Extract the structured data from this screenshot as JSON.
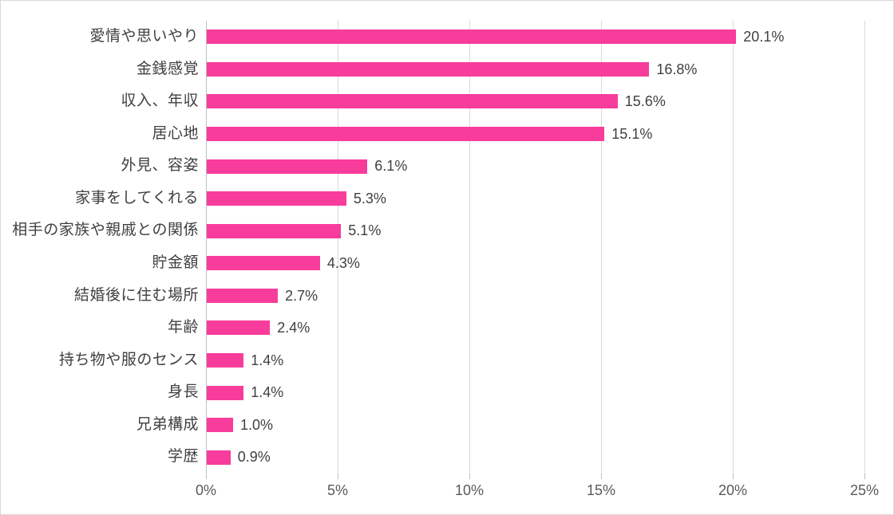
{
  "chart_data": {
    "type": "bar",
    "orientation": "horizontal",
    "title": "",
    "xlabel": "",
    "ylabel": "",
    "categories": [
      "愛情や思いやり",
      "金銭感覚",
      "収入、年収",
      "居心地",
      "外見、容姿",
      "家事をしてくれる",
      "相手の家族や親戚との関係",
      "貯金額",
      "結婚後に住む場所",
      "年齢",
      "持ち物や服のセンス",
      "身長",
      "兄弟構成",
      "学歴"
    ],
    "values": [
      20.1,
      16.8,
      15.6,
      15.1,
      6.1,
      5.3,
      5.1,
      4.3,
      2.7,
      2.4,
      1.4,
      1.4,
      1.0,
      0.9
    ],
    "value_labels": [
      "20.1%",
      "16.8%",
      "15.6%",
      "15.1%",
      "6.1%",
      "5.3%",
      "5.1%",
      "4.3%",
      "2.7%",
      "2.4%",
      "1.4%",
      "1.4%",
      "1.0%",
      "0.9%"
    ],
    "x_ticks": [
      {
        "label": "0%",
        "value": 0
      },
      {
        "label": "5%",
        "value": 5
      },
      {
        "label": "10%",
        "value": 10
      },
      {
        "label": "15%",
        "value": 15
      },
      {
        "label": "20%",
        "value": 20
      },
      {
        "label": "25%",
        "value": 25
      }
    ],
    "xlim": [
      0,
      25
    ],
    "grid": true,
    "legend_position": "none",
    "data_labels_shown": true,
    "colors": {
      "bar": "#F83C9B",
      "gridline": "#D9D9D9",
      "axis_line": "#BFBFBF",
      "category_label": "#404040",
      "value_label": "#404040",
      "tick_label": "#595959",
      "chart_border": "#D9D9D9",
      "background": "#FFFFFF"
    }
  }
}
